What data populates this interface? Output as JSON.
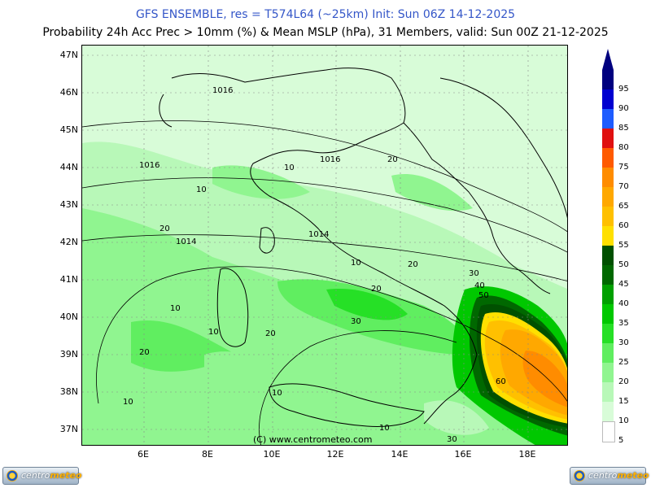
{
  "header": {
    "title": "GFS ENSEMBLE, res = T574L64 (~25km)    Init: Sun 06Z 14-12-2025",
    "subtitle": "Probability 24h Acc Prec > 10mm (%) & Mean MSLP (hPa), 31 Members, valid: Sun 00Z 21-12-2025"
  },
  "map": {
    "lat_labels": [
      "47N",
      "46N",
      "45N",
      "44N",
      "43N",
      "42N",
      "41N",
      "40N",
      "39N",
      "38N",
      "37N"
    ],
    "lon_labels": [
      "6E",
      "8E",
      "10E",
      "12E",
      "14E",
      "16E",
      "18E"
    ],
    "copyright": "(C) www.centrometeo.com",
    "isobar_labels": [
      "1016",
      "1016",
      "1016",
      "1014",
      "1014"
    ],
    "contour_labels": [
      "10",
      "20",
      "10",
      "20",
      "10",
      "20",
      "30",
      "40",
      "50",
      "60",
      "20",
      "30",
      "10",
      "20",
      "10",
      "20",
      "10",
      "10",
      "10",
      "30"
    ]
  },
  "colorbar": {
    "levels": [
      "95",
      "90",
      "85",
      "80",
      "75",
      "70",
      "65",
      "60",
      "55",
      "50",
      "45",
      "40",
      "35",
      "30",
      "25",
      "20",
      "15",
      "10",
      "5"
    ],
    "colors": [
      "#00007f",
      "#0000d0",
      "#1e5cff",
      "#e01010",
      "#ff5a00",
      "#ff8c00",
      "#ffa800",
      "#ffc000",
      "#ffe000",
      "#005000",
      "#006800",
      "#00a000",
      "#00c800",
      "#26e026",
      "#60ee60",
      "#90f590",
      "#b8f8b8",
      "#d8fcd8",
      "#ffffff"
    ]
  },
  "logos": {
    "brand_text_1": "centro",
    "brand_text_2": "meteo"
  }
}
